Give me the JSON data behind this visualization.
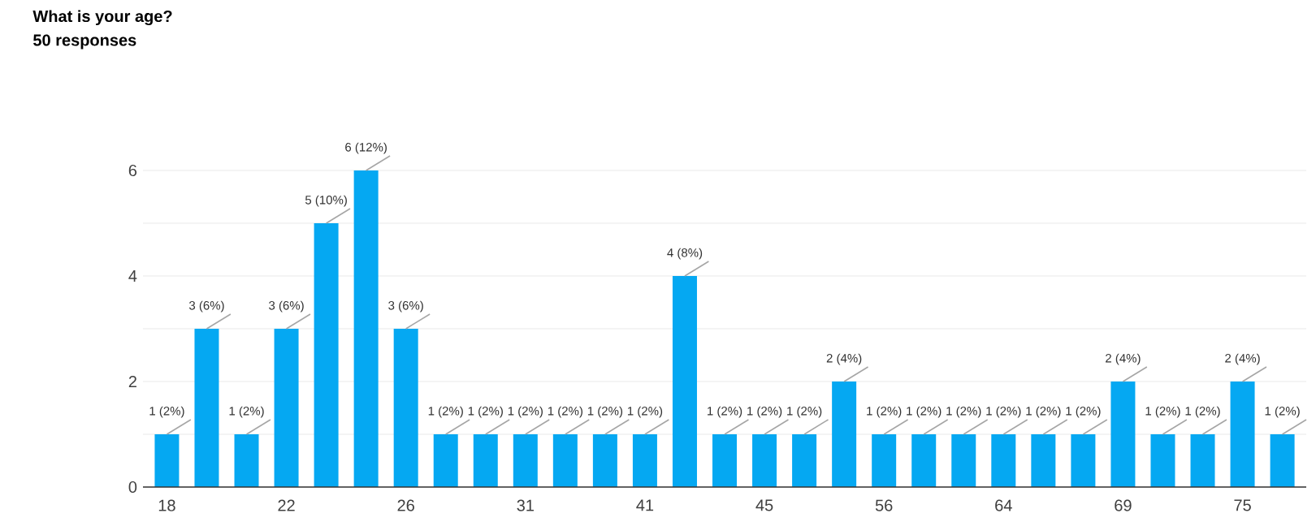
{
  "chart_data": {
    "type": "bar",
    "title": "What is your age?",
    "subtitle": "50 responses",
    "categories": [
      "18",
      null,
      null,
      "22",
      null,
      null,
      "26",
      null,
      null,
      "31",
      null,
      null,
      "41",
      null,
      null,
      "45",
      null,
      null,
      "56",
      null,
      null,
      "64",
      null,
      null,
      "69",
      null,
      null,
      "75",
      null
    ],
    "values": [
      1,
      3,
      1,
      3,
      5,
      6,
      3,
      1,
      1,
      1,
      1,
      1,
      1,
      4,
      1,
      1,
      1,
      2,
      1,
      1,
      1,
      1,
      1,
      1,
      2,
      1,
      1,
      2,
      1
    ],
    "value_labels": [
      "1 (2%)",
      "3 (6%)",
      "1 (2%)",
      "3 (6%)",
      "5 (10%)",
      "6 (12%)",
      "3 (6%)",
      "1 (2%)",
      "1 (2%)",
      "1 (2%)",
      "1 (2%)",
      "1 (2%)",
      "1 (2%)",
      "4 (8%)",
      "1 (2%)",
      "1 (2%)",
      "1 (2%)",
      "2 (4%)",
      "1 (2%)",
      "1 (2%)",
      "1 (2%)",
      "1 (2%)",
      "1 (2%)",
      "1 (2%)",
      "2 (4%)",
      "1 (2%)",
      "1 (2%)",
      "2 (4%)",
      "1 (2%)"
    ],
    "color": "#05a8f2",
    "ylim": [
      0,
      6
    ],
    "yticks": [
      0,
      {
        "value": 1,
        "label": null
      },
      2,
      {
        "value": 3,
        "label": null
      },
      4,
      {
        "value": 5,
        "label": null
      },
      6
    ],
    "grid": "y"
  }
}
